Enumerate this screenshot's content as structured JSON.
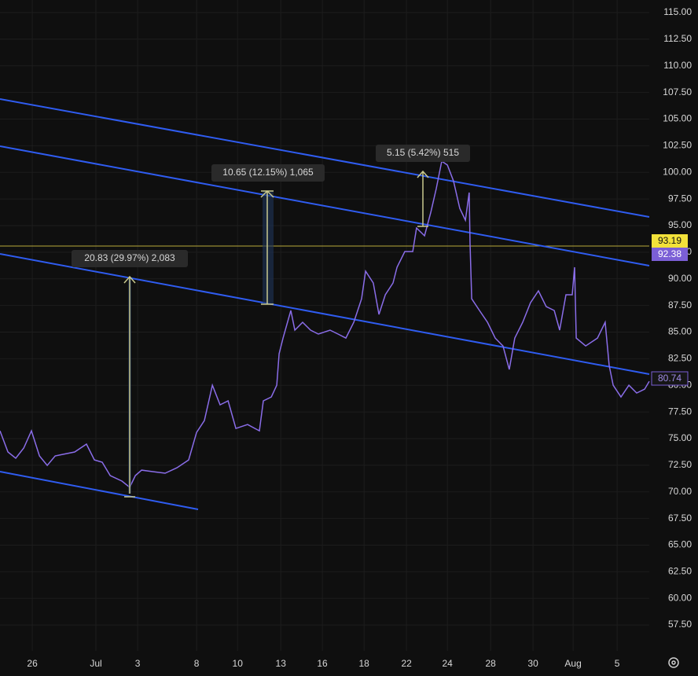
{
  "chart_data": {
    "type": "line",
    "x": [
      -1.54,
      -1.16,
      -0.79,
      -0.41,
      -0.04,
      0.34,
      0.71,
      1.09,
      1.46,
      2.02,
      2.58,
      2.96,
      3.33,
      3.71,
      4.27,
      4.64,
      4.91,
      5.21,
      5.77,
      6.33,
      6.89,
      7.45,
      7.83,
      8.2,
      8.58,
      8.95,
      9.33,
      9.7,
      10.26,
      10.82,
      11.01,
      11.39,
      11.65,
      11.76,
      11.95,
      12.32,
      12.51,
      12.88,
      13.26,
      13.63,
      14.19,
      14.57,
      14.94,
      15.32,
      15.69,
      15.88,
      16.25,
      16.52,
      16.82,
      17.19,
      17.38,
      17.75,
      18.13,
      18.31,
      18.69,
      18.99,
      19.25,
      19.51,
      19.78,
      20.07,
      20.37,
      20.64,
      20.82,
      20.86,
      20.94,
      21.31,
      21.69,
      22.06,
      22.43,
      22.73,
      22.99,
      23.37,
      23.74,
      24.12,
      24.49,
      24.87,
      25.13,
      25.43,
      25.73,
      25.84,
      25.92,
      26.37,
      26.93,
      27.3,
      27.49,
      27.68,
      28.05,
      28.43,
      28.8,
      29.18,
      29.4
    ],
    "series": [
      {
        "color": "#8a6de9",
        "values": [
          75.73,
          73.74,
          73.15,
          74.11,
          75.73,
          73.37,
          72.48,
          73.37,
          73.52,
          73.74,
          74.48,
          73.0,
          72.78,
          71.53,
          71.01,
          70.42,
          71.53,
          72.04,
          71.89,
          71.75,
          72.26,
          73.0,
          75.58,
          76.69,
          80.01,
          78.17,
          78.54,
          75.95,
          76.32,
          75.73,
          78.54,
          78.91,
          80.01,
          82.97,
          84.44,
          87.03,
          85.18,
          85.92,
          85.18,
          84.81,
          85.18,
          84.81,
          84.44,
          85.92,
          88.13,
          90.72,
          89.61,
          86.66,
          88.5,
          89.61,
          91.09,
          92.56,
          92.56,
          94.78,
          94.04,
          96.25,
          98.47,
          101.05,
          100.68,
          99.2,
          96.62,
          95.51,
          98.1,
          93.3,
          88.13,
          87.03,
          85.92,
          84.44,
          83.7,
          81.49,
          84.44,
          85.92,
          87.76,
          88.87,
          87.39,
          87.03,
          85.18,
          88.5,
          88.5,
          91.09,
          84.44,
          83.7,
          84.44,
          85.92,
          81.86,
          80.01,
          78.91,
          80.01,
          79.28,
          79.64,
          80.38
        ]
      }
    ],
    "xlim": [
      -1.54,
      29.4
    ],
    "ylim": [
      55.07,
      116.18
    ],
    "xticks": [
      {
        "value": 0,
        "label": "26"
      },
      {
        "value": 3.03,
        "label": "Jul"
      },
      {
        "value": 5.02,
        "label": "3"
      },
      {
        "value": 7.83,
        "label": "8"
      },
      {
        "value": 9.78,
        "label": "10"
      },
      {
        "value": 11.84,
        "label": "13"
      },
      {
        "value": 13.82,
        "label": "16"
      },
      {
        "value": 15.81,
        "label": "18"
      },
      {
        "value": 17.83,
        "label": "22"
      },
      {
        "value": 19.78,
        "label": "24"
      },
      {
        "value": 21.84,
        "label": "28"
      },
      {
        "value": 23.86,
        "label": "30"
      },
      {
        "value": 25.77,
        "label": "Aug"
      },
      {
        "value": 27.87,
        "label": "5"
      }
    ],
    "yticks": [
      {
        "value": 57.5,
        "label": "57.50"
      },
      {
        "value": 60,
        "label": "60.00"
      },
      {
        "value": 62.5,
        "label": "62.50"
      },
      {
        "value": 65,
        "label": "65.00"
      },
      {
        "value": 67.5,
        "label": "67.50"
      },
      {
        "value": 70,
        "label": "70.00"
      },
      {
        "value": 72.5,
        "label": "72.50"
      },
      {
        "value": 75,
        "label": "75.00"
      },
      {
        "value": 77.5,
        "label": "77.50"
      },
      {
        "value": 80,
        "label": "80.00"
      },
      {
        "value": 82.5,
        "label": "82.50"
      },
      {
        "value": 85,
        "label": "85.00"
      },
      {
        "value": 87.5,
        "label": "87.50"
      },
      {
        "value": 90,
        "label": "90.00"
      },
      {
        "value": 92.5,
        "label": "92.50"
      },
      {
        "value": 95,
        "label": "95.00"
      },
      {
        "value": 97.5,
        "label": "97.50"
      },
      {
        "value": 100,
        "label": "100.00"
      },
      {
        "value": 102.5,
        "label": "102.50"
      },
      {
        "value": 105,
        "label": "105.00"
      },
      {
        "value": 107.5,
        "label": "107.50"
      },
      {
        "value": 110,
        "label": "110.00"
      },
      {
        "value": 112.5,
        "label": "112.50"
      },
      {
        "value": 115,
        "label": "115.00"
      }
    ],
    "grid": true
  },
  "annotations": {
    "measures": [
      "20.83 (29.97%) 2,083",
      "10.65 (12.15%) 1,065",
      "5.15 (5.42%) 515"
    ],
    "price_labels": [
      "93.19",
      "92.38",
      "80.74"
    ]
  }
}
